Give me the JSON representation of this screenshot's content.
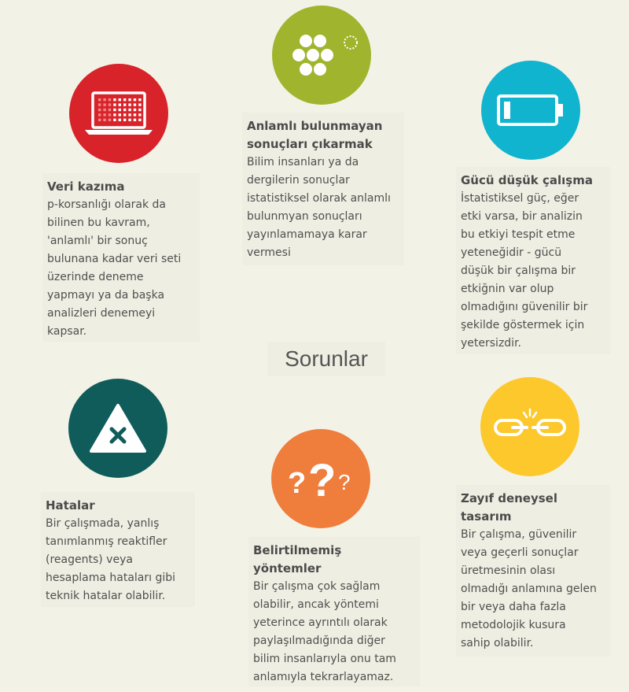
{
  "center_title": "Sorunlar",
  "colors": {
    "red": "#d8232a",
    "green": "#a0b52d",
    "teal": "#11b4cf",
    "dark_teal": "#0f5c5a",
    "orange": "#ef7d3b",
    "yellow": "#fdc82c",
    "background": "#f3f2e7"
  },
  "items": [
    {
      "icon": "laptop-icon",
      "title": "Veri kazıma",
      "lines": [
        "p-korsanlığı olarak da",
        "bilinen bu kavram,",
        "'anlamlı' bir sonuç",
        "bulunana kadar veri seti",
        "üzerinde deneme",
        "yapmayı ya da başka",
        "analizleri denemeyi",
        "kapsar."
      ]
    },
    {
      "icon": "cell-cluster-icon",
      "title_lines": [
        "Anlamlı bulunmayan",
        "sonuçları çıkarmak"
      ],
      "lines": [
        "Bilim insanları ya da",
        "dergilerin sonuçlar",
        "istatistiksel olarak anlamlı",
        "bulunmyan sonuçları",
        "yayınlamamaya karar",
        "vermesi"
      ]
    },
    {
      "icon": "low-battery-icon",
      "title": "Gücü düşük çalışma",
      "lines": [
        "İstatistiksel güç, eğer",
        "etki varsa, bir analizin",
        "bu etkiyi tespit etme",
        "yeteneğidir - gücü",
        "düşük bir çalışma bir",
        "etkiğnin var olup",
        "olmadığını güvenilir bir",
        "şekilde göstermek için",
        "yetersizdir."
      ]
    },
    {
      "icon": "warning-triangle-icon",
      "title": "Hatalar",
      "lines": [
        "Bir çalışmada, yanlış",
        "tanımlanmış reaktifler",
        "(reagents) veya",
        "hesaplama hataları gibi",
        "teknik hatalar olabilir."
      ]
    },
    {
      "icon": "question-marks-icon",
      "title_lines": [
        "Belirtilmemiş",
        "yöntemler"
      ],
      "lines": [
        "Bir çalışma çok sağlam",
        "olabilir, ancak yöntemi",
        "yeterince ayrıntılı olarak",
        "paylaşılmadığında diğer",
        "bilim insanlarıyla onu tam",
        "anlamıyla tekrarlayamaz."
      ]
    },
    {
      "icon": "broken-chain-icon",
      "title_lines": [
        "Zayıf deneysel",
        "tasarım"
      ],
      "lines": [
        "Bir çalışma, güvenilir",
        "veya geçerli sonuçlar",
        "üretmesinin olası",
        "olmadığı anlamına gelen",
        "bir veya daha fazla",
        "metodolojik kusura",
        "sahip olabilir."
      ]
    }
  ]
}
